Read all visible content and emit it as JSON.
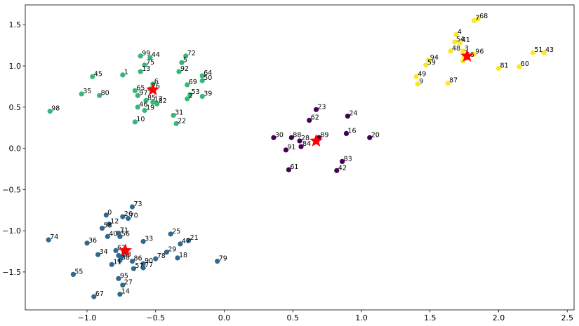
{
  "chart_data": {
    "type": "scatter",
    "title": "",
    "xlabel": "",
    "ylabel": "",
    "xlim": [
      -1.45,
      2.55
    ],
    "ylim": [
      -1.96,
      1.74
    ],
    "xticks": [
      -1.0,
      -0.5,
      0.0,
      0.5,
      1.0,
      1.5,
      2.0,
      2.5
    ],
    "xtick_labels": [
      "−1.0",
      "−0.5",
      "0.0",
      "0.5",
      "1.0",
      "1.5",
      "2.0",
      "2.5"
    ],
    "yticks": [
      -1.5,
      -1.0,
      -0.5,
      0.0,
      0.5,
      1.0,
      1.5
    ],
    "ytick_labels": [
      "−1.5",
      "−1.0",
      "−0.5",
      "0.0",
      "0.5",
      "1.0",
      "1.5"
    ],
    "grid": false,
    "colors": {
      "cluster0": "#440154",
      "cluster1": "#31688e",
      "cluster2": "#35b779",
      "cluster3": "#fde725",
      "centroid": "#ff0000",
      "frame": "#000000"
    },
    "series": [
      {
        "cluster": 0,
        "points": [
          {
            "label": "23",
            "x": 0.67,
            "y": 0.47
          },
          {
            "label": "24",
            "x": 0.9,
            "y": 0.39
          },
          {
            "label": "62",
            "x": 0.62,
            "y": 0.34
          },
          {
            "label": "16",
            "x": 0.89,
            "y": 0.18
          },
          {
            "label": "30",
            "x": 0.36,
            "y": 0.13
          },
          {
            "label": "88",
            "x": 0.49,
            "y": 0.13
          },
          {
            "label": "28",
            "x": 0.55,
            "y": 0.09
          },
          {
            "label": "89",
            "x": 0.69,
            "y": 0.13
          },
          {
            "label": "20",
            "x": 1.06,
            "y": 0.13
          },
          {
            "label": "84",
            "x": 0.56,
            "y": 0.02
          },
          {
            "label": "91",
            "x": 0.45,
            "y": -0.02
          },
          {
            "label": "83",
            "x": 0.86,
            "y": -0.16
          },
          {
            "label": "61",
            "x": 0.47,
            "y": -0.26
          },
          {
            "label": "42",
            "x": 0.82,
            "y": -0.27
          }
        ]
      },
      {
        "cluster": 1,
        "points": [
          {
            "label": "73",
            "x": -0.67,
            "y": -0.71
          },
          {
            "label": "0",
            "x": -0.86,
            "y": -0.81
          },
          {
            "label": "26",
            "x": -0.74,
            "y": -0.83
          },
          {
            "label": "70",
            "x": -0.7,
            "y": -0.85
          },
          {
            "label": "12",
            "x": -0.84,
            "y": -0.92
          },
          {
            "label": "58",
            "x": -0.89,
            "y": -0.97
          },
          {
            "label": "71",
            "x": -0.77,
            "y": -1.03
          },
          {
            "label": "40",
            "x": -0.85,
            "y": -1.07
          },
          {
            "label": "56",
            "x": -0.76,
            "y": -1.07
          },
          {
            "label": "25",
            "x": -0.39,
            "y": -1.04
          },
          {
            "label": "74",
            "x": -1.28,
            "y": -1.11
          },
          {
            "label": "21",
            "x": -0.26,
            "y": -1.12
          },
          {
            "label": "36",
            "x": -1.0,
            "y": -1.15
          },
          {
            "label": "33",
            "x": -0.59,
            "y": -1.13
          },
          {
            "label": "47",
            "x": -0.32,
            "y": -1.16
          },
          {
            "label": "63",
            "x": -0.79,
            "y": -1.24
          },
          {
            "label": "34",
            "x": -0.92,
            "y": -1.29
          },
          {
            "label": "29",
            "x": -0.42,
            "y": -1.26
          },
          {
            "label": "15",
            "x": -0.77,
            "y": -1.3
          },
          {
            "label": "83",
            "x": -0.75,
            "y": -1.32
          },
          {
            "label": "18",
            "x": -0.34,
            "y": -1.33
          },
          {
            "label": "78",
            "x": -0.5,
            "y": -1.34
          },
          {
            "label": "38",
            "x": -0.76,
            "y": -1.36
          },
          {
            "label": "86",
            "x": -0.67,
            "y": -1.37
          },
          {
            "label": "79",
            "x": -0.05,
            "y": -1.37
          },
          {
            "label": "11",
            "x": -0.82,
            "y": -1.41
          },
          {
            "label": "90",
            "x": -0.59,
            "y": -1.4
          },
          {
            "label": "57",
            "x": -0.66,
            "y": -1.46
          },
          {
            "label": "77",
            "x": -0.59,
            "y": -1.45
          },
          {
            "label": "55",
            "x": -1.1,
            "y": -1.53
          },
          {
            "label": "95",
            "x": -0.77,
            "y": -1.58
          },
          {
            "label": "27",
            "x": -0.74,
            "y": -1.66
          },
          {
            "label": "67",
            "x": -0.95,
            "y": -1.8
          },
          {
            "label": "14",
            "x": -0.76,
            "y": -1.77
          }
        ]
      },
      {
        "cluster": 2,
        "points": [
          {
            "label": "99",
            "x": -0.61,
            "y": 1.12
          },
          {
            "label": "44",
            "x": -0.54,
            "y": 1.1
          },
          {
            "label": "72",
            "x": -0.28,
            "y": 1.12
          },
          {
            "label": "5",
            "x": -0.31,
            "y": 1.04
          },
          {
            "label": "75",
            "x": -0.58,
            "y": 1.01
          },
          {
            "label": "13",
            "x": -0.61,
            "y": 0.93
          },
          {
            "label": "92",
            "x": -0.33,
            "y": 0.93
          },
          {
            "label": "45",
            "x": -0.96,
            "y": 0.87
          },
          {
            "label": "1",
            "x": -0.74,
            "y": 0.89
          },
          {
            "label": "64",
            "x": -0.16,
            "y": 0.88
          },
          {
            "label": "50",
            "x": -0.16,
            "y": 0.82
          },
          {
            "label": "69",
            "x": -0.27,
            "y": 0.77
          },
          {
            "label": "6",
            "x": -0.52,
            "y": 0.78
          },
          {
            "label": "65",
            "x": -0.65,
            "y": 0.7
          },
          {
            "label": "76",
            "x": -0.54,
            "y": 0.72
          },
          {
            "label": "35",
            "x": -1.04,
            "y": 0.66
          },
          {
            "label": "80",
            "x": -0.91,
            "y": 0.64
          },
          {
            "label": "97",
            "x": -0.63,
            "y": 0.64
          },
          {
            "label": "53",
            "x": -0.25,
            "y": 0.65
          },
          {
            "label": "39",
            "x": -0.16,
            "y": 0.63
          },
          {
            "label": "2",
            "x": -0.27,
            "y": 0.6
          },
          {
            "label": "85",
            "x": -0.57,
            "y": 0.58
          },
          {
            "label": "17",
            "x": -0.52,
            "y": 0.56
          },
          {
            "label": "82",
            "x": -0.49,
            "y": 0.54
          },
          {
            "label": "46",
            "x": -0.63,
            "y": 0.5
          },
          {
            "label": "19",
            "x": -0.58,
            "y": 0.46
          },
          {
            "label": "98",
            "x": -1.27,
            "y": 0.45
          },
          {
            "label": "31",
            "x": -0.37,
            "y": 0.4
          },
          {
            "label": "10",
            "x": -0.65,
            "y": 0.32
          },
          {
            "label": "22",
            "x": -0.35,
            "y": 0.3
          }
        ]
      },
      {
        "cluster": 3,
        "points": [
          {
            "label": "7",
            "x": 1.82,
            "y": 1.55
          },
          {
            "label": "68",
            "x": 1.85,
            "y": 1.57
          },
          {
            "label": "4",
            "x": 1.69,
            "y": 1.38
          },
          {
            "label": "54",
            "x": 1.68,
            "y": 1.29
          },
          {
            "label": "41",
            "x": 1.72,
            "y": 1.28
          },
          {
            "label": "48",
            "x": 1.65,
            "y": 1.18
          },
          {
            "label": "3",
            "x": 1.74,
            "y": 1.18
          },
          {
            "label": "51",
            "x": 2.25,
            "y": 1.16
          },
          {
            "label": "43",
            "x": 2.33,
            "y": 1.16
          },
          {
            "label": "96",
            "x": 1.82,
            "y": 1.14
          },
          {
            "label": "66",
            "x": 1.75,
            "y": 1.1
          },
          {
            "label": "94",
            "x": 1.49,
            "y": 1.07
          },
          {
            "label": "8",
            "x": 1.74,
            "y": 1.06
          },
          {
            "label": "59",
            "x": 1.47,
            "y": 1.01
          },
          {
            "label": "81",
            "x": 2.0,
            "y": 0.97
          },
          {
            "label": "60",
            "x": 2.15,
            "y": 0.99
          },
          {
            "label": "49",
            "x": 1.4,
            "y": 0.87
          },
          {
            "label": "9",
            "x": 1.41,
            "y": 0.78
          },
          {
            "label": "87",
            "x": 1.63,
            "y": 0.79
          }
        ]
      }
    ],
    "centroids": [
      {
        "cluster": 0,
        "x": 0.67,
        "y": 0.09
      },
      {
        "cluster": 1,
        "x": -0.72,
        "y": -1.24
      },
      {
        "cluster": 2,
        "x": -0.52,
        "y": 0.71
      },
      {
        "cluster": 3,
        "x": 1.77,
        "y": 1.12
      }
    ]
  }
}
